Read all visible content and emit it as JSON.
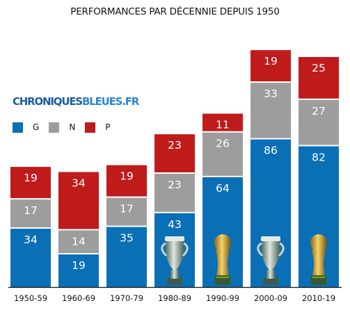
{
  "title": "PERFORMANCES PAR DÉCENNIE DEPUIS 1950",
  "brand": {
    "part1": "CHRONIQUES",
    "part2": "BLEUES.FR"
  },
  "colors": {
    "G": "#0b6fb6",
    "N": "#9d9d9d",
    "P": "#bf1b1b"
  },
  "chart_data": {
    "type": "bar",
    "stacked": true,
    "title": "PERFORMANCES PAR DÉCENNIE DEPUIS 1950",
    "categories": [
      "1950-59",
      "1960-69",
      "1970-79",
      "1980-89",
      "1990-99",
      "2000-09",
      "2010-19"
    ],
    "series": [
      {
        "name": "G",
        "values": [
          34,
          19,
          35,
          43,
          64,
          86,
          82
        ]
      },
      {
        "name": "N",
        "values": [
          17,
          14,
          17,
          23,
          26,
          33,
          27
        ]
      },
      {
        "name": "P",
        "values": [
          19,
          34,
          19,
          23,
          11,
          19,
          25
        ]
      }
    ],
    "ylim": [
      0,
      145
    ],
    "legend_position": "top-left",
    "trophies": [
      {
        "category": "1980-89",
        "icon": "euro-trophy-icon"
      },
      {
        "category": "1990-99",
        "icon": "world-cup-trophy-icon"
      },
      {
        "category": "2000-09",
        "icon": "euro-trophy-icon"
      },
      {
        "category": "2010-19",
        "icon": "world-cup-trophy-icon"
      }
    ]
  }
}
